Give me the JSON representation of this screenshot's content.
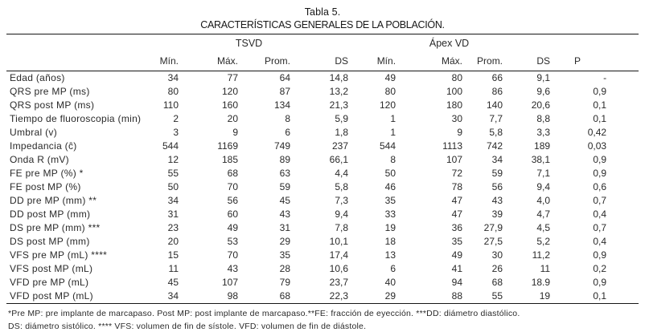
{
  "table": {
    "title": "Tabla 5.",
    "subtitle": "CARACTERÍSTICAS GENERALES DE LA POBLACIÓN.",
    "group_headers": {
      "tsvd": "TSVD",
      "apex": "Ápex VD"
    },
    "column_headers": [
      "Mín.",
      "Máx.",
      "Prom.",
      "DS",
      "Mín.",
      "Máx.",
      "Prom.",
      "DS",
      "P"
    ],
    "rows": [
      {
        "label": "Edad (años)",
        "values": [
          "34",
          "77",
          "64",
          "14,8",
          "49",
          "80",
          "66",
          "9,1",
          "-"
        ]
      },
      {
        "label": "QRS pre MP (ms)",
        "values": [
          "80",
          "120",
          "87",
          "13,2",
          "80",
          "100",
          "86",
          "9,6",
          "0,9"
        ]
      },
      {
        "label": "QRS post MP (ms)",
        "values": [
          "110",
          "160",
          "134",
          "21,3",
          "120",
          "180",
          "140",
          "20,6",
          "0,1"
        ]
      },
      {
        "label": "Tiempo de fluoroscopia (min)",
        "values": [
          "2",
          "20",
          "8",
          "5,9",
          "1",
          "30",
          "7,7",
          "8,8",
          "0,1"
        ]
      },
      {
        "label": "Umbral (v)",
        "values": [
          "3",
          "9",
          "6",
          "1,8",
          "1",
          "9",
          "5,8",
          "3,3",
          "0,42"
        ]
      },
      {
        "label": "Impedancia (ĉ)",
        "values": [
          "544",
          "1169",
          "749",
          "237",
          "544",
          "1113",
          "742",
          "189",
          "0,03"
        ]
      },
      {
        "label": "Onda R (mV)",
        "values": [
          "12",
          "185",
          "89",
          "66,1",
          "8",
          "107",
          "34",
          "38,1",
          "0,9"
        ]
      },
      {
        "label": "FE pre MP (%) *",
        "values": [
          "55",
          "68",
          "63",
          "4,4",
          "50",
          "72",
          "59",
          "7,1",
          "0,9"
        ]
      },
      {
        "label": "FE post MP (%)",
        "values": [
          "50",
          "70",
          "59",
          "5,8",
          "46",
          "78",
          "56",
          "9,4",
          "0,6"
        ]
      },
      {
        "label": "DD pre MP (mm) **",
        "values": [
          "34",
          "56",
          "45",
          "7,3",
          "35",
          "47",
          "43",
          "4,0",
          "0,7"
        ]
      },
      {
        "label": "DD post MP (mm)",
        "values": [
          "31",
          "60",
          "43",
          "9,4",
          "33",
          "47",
          "39",
          "4,7",
          "0,4"
        ]
      },
      {
        "label": "DS pre MP (mm) ***",
        "values": [
          "23",
          "49",
          "31",
          "7,8",
          "19",
          "36",
          "27,9",
          "4,5",
          "0,7"
        ]
      },
      {
        "label": "DS post MP (mm)",
        "values": [
          "20",
          "53",
          "29",
          "10,1",
          "18",
          "35",
          "27,5",
          "5,2",
          "0,4"
        ]
      },
      {
        "label": "VFS pre MP (mL) ****",
        "values": [
          "15",
          "70",
          "35",
          "17,4",
          "13",
          "49",
          "30",
          "11,2",
          "0,9"
        ]
      },
      {
        "label": "VFS post MP (mL)",
        "values": [
          "11",
          "43",
          "28",
          "10,6",
          "6",
          "41",
          "26",
          "11",
          "0,2"
        ]
      },
      {
        "label": "VFD pre MP (mL)",
        "values": [
          "45",
          "107",
          "79",
          "23,7",
          "40",
          "94",
          "68",
          "18.9",
          "0,9"
        ]
      },
      {
        "label": "VFD post MP (mL)",
        "values": [
          "34",
          "98",
          "68",
          "22,3",
          "29",
          "88",
          "55",
          "19",
          "0,1"
        ]
      }
    ],
    "footnotes": [
      "*Pre MP: pre implante de marcapaso. Post MP: post implante de marcapaso.**FE: fracción de eyección. ***DD: diámetro diastólico.",
      "DS: diámetro sistólico. **** VFS: volumen de fin de sístole. VFD: volumen de fin de diástole."
    ]
  },
  "colors": {
    "text": "#2a2a2a",
    "rule": "#161616",
    "background": "#ffffff"
  }
}
